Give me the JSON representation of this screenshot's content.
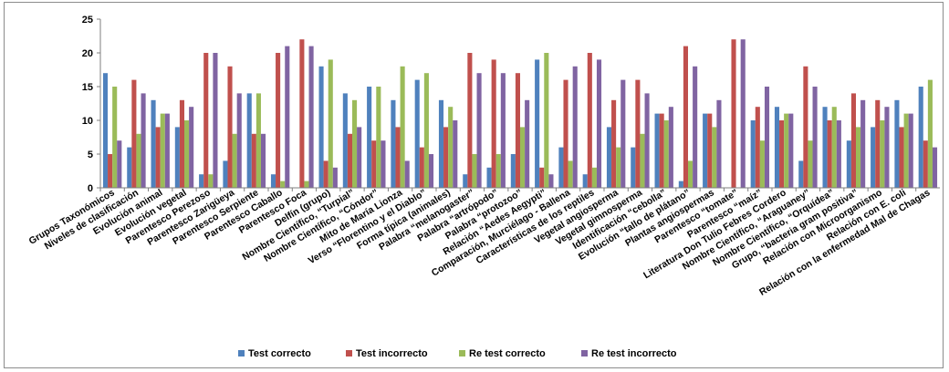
{
  "chart_data": {
    "type": "bar",
    "ylim": [
      0,
      25
    ],
    "yticks": [
      0,
      5,
      10,
      15,
      20,
      25
    ],
    "grid": false,
    "legend_position": "bottom",
    "categories": [
      "Grupos Taxonómicos",
      "Niveles de clasificación",
      "Evolución animal",
      "Evolución vegetal",
      "Parentesco Perezoso",
      "Parentesco Zarigüeya",
      "Parentesco Serpiente",
      "Parentesco Caballo",
      "Parentesco Foca",
      "Delfín (grupo)",
      "Nombre Científico, “Turpial”",
      "Nombre Científico, “Cóndor”",
      "Mito de María Lionza",
      "Verso “Florentino y el Diablo”",
      "Forma típica (animales)",
      "Palabra “melanogaster”",
      "Palabra “artrópodo”",
      "Palabra “protozoo”",
      "Relación “Aedes Aegypti”",
      "Comparación, Murciélago - Ballena",
      "Características de los reptiles",
      "Vegetal angiosperma",
      "Vegetal gimnosperma",
      "Identificación “cebolla”",
      "Evolución “tallo de plátano”",
      "Plantas angiospermas",
      "Parentesco “tomate”",
      "Parentesco “maíz”",
      "Literatura Don Tulio Febres Cordero",
      "Nombre Científico, “Araguaney”",
      "Nombre Científico, “Orquídea”",
      "Grupo, “bacteria gram positiva”",
      "Relación con Microorganismo",
      "Relación con E. coli",
      "Relación con la enfermedad Mal de Chagas"
    ],
    "series": [
      {
        "name": "Test correcto",
        "color": "#4f81bd",
        "values": [
          17,
          6,
          13,
          9,
          2,
          4,
          14,
          2,
          0,
          18,
          14,
          15,
          13,
          16,
          13,
          2,
          3,
          5,
          19,
          6,
          2,
          9,
          6,
          11,
          1,
          11,
          0,
          10,
          12,
          4,
          12,
          7,
          9,
          13,
          15
        ]
      },
      {
        "name": "Test incorrecto",
        "color": "#c0504d",
        "values": [
          5,
          16,
          9,
          13,
          20,
          18,
          8,
          20,
          22,
          4,
          8,
          7,
          9,
          6,
          9,
          20,
          19,
          17,
          3,
          16,
          20,
          13,
          16,
          11,
          21,
          11,
          22,
          12,
          10,
          18,
          10,
          14,
          13,
          9,
          7
        ]
      },
      {
        "name": "Re test correcto",
        "color": "#9bbb59",
        "values": [
          15,
          8,
          11,
          10,
          2,
          8,
          14,
          1,
          1,
          19,
          13,
          15,
          18,
          17,
          12,
          5,
          5,
          9,
          20,
          4,
          3,
          6,
          8,
          10,
          4,
          9,
          0,
          7,
          11,
          7,
          12,
          9,
          10,
          11,
          16
        ]
      },
      {
        "name": "Re test incorrecto",
        "color": "#8064a2",
        "values": [
          7,
          14,
          11,
          12,
          20,
          14,
          8,
          21,
          21,
          3,
          9,
          7,
          4,
          5,
          10,
          17,
          17,
          13,
          2,
          18,
          19,
          16,
          14,
          12,
          18,
          13,
          22,
          15,
          11,
          15,
          10,
          13,
          12,
          11,
          6
        ]
      }
    ]
  }
}
